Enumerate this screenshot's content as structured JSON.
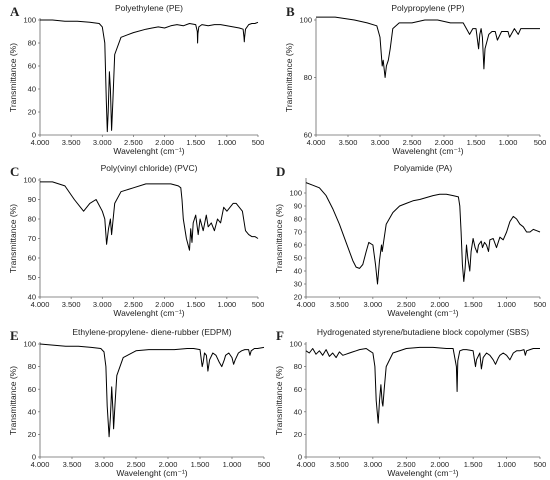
{
  "chart_data": [
    {
      "type": "line",
      "label": "A",
      "title": "Polyethylene (PE)",
      "xlabel": "Wavelenght (cm⁻¹)",
      "ylabel": "Transmittance (%)",
      "xlim": [
        4000,
        500
      ],
      "ylim": [
        0,
        100
      ],
      "xticks": [
        "4.000",
        "3.500",
        "3.000",
        "2.500",
        "2.000",
        "1.500",
        "1.000",
        "500"
      ],
      "yticks": [
        "0",
        "20",
        "40",
        "60",
        "80",
        "100"
      ],
      "x": [
        4000,
        3800,
        3600,
        3400,
        3200,
        3050,
        3000,
        2960,
        2935,
        2920,
        2905,
        2885,
        2870,
        2850,
        2830,
        2800,
        2700,
        2500,
        2300,
        2200,
        2100,
        2000,
        1900,
        1800,
        1700,
        1600,
        1500,
        1475,
        1470,
        1465,
        1450,
        1400,
        1300,
        1200,
        1100,
        1000,
        900,
        800,
        740,
        725,
        720,
        715,
        700,
        650,
        600,
        550,
        500
      ],
      "y": [
        100,
        100,
        99,
        99,
        98,
        97,
        94,
        80,
        30,
        3,
        20,
        55,
        40,
        4,
        30,
        70,
        85,
        89,
        92,
        93,
        94,
        93,
        95,
        96,
        95,
        97,
        96,
        90,
        80,
        88,
        94,
        96,
        95,
        96,
        96,
        95,
        94,
        93,
        92,
        85,
        81,
        85,
        92,
        96,
        97,
        97,
        98
      ]
    },
    {
      "type": "line",
      "label": "B",
      "title": "Polypropylene (PP)",
      "xlabel": "Wavelenght (cm⁻¹)",
      "ylabel": "Transmittance (%)",
      "xlim": [
        4000,
        500
      ],
      "ylim": [
        60,
        100
      ],
      "xticks": [
        "4.000",
        "3.500",
        "3.000",
        "2.500",
        "2.000",
        "1.500",
        "1.000",
        "500"
      ],
      "yticks": [
        "60",
        "80",
        "100"
      ],
      "x": [
        4000,
        3700,
        3400,
        3200,
        3050,
        3000,
        2965,
        2950,
        2920,
        2900,
        2870,
        2840,
        2800,
        2700,
        2500,
        2300,
        2100,
        1900,
        1800,
        1700,
        1650,
        1600,
        1550,
        1500,
        1460,
        1440,
        1420,
        1400,
        1376,
        1360,
        1300,
        1250,
        1200,
        1165,
        1100,
        1000,
        975,
        900,
        840,
        800,
        700,
        600,
        500
      ],
      "y": [
        101,
        101,
        100,
        99,
        98,
        94,
        84,
        86,
        80,
        84,
        86,
        90,
        97,
        99,
        99,
        100,
        100,
        99,
        99,
        99,
        97,
        95,
        97,
        97,
        90,
        95,
        97,
        94,
        83,
        90,
        95,
        96,
        96,
        93,
        96,
        96,
        94,
        97,
        95,
        97,
        97,
        97,
        97
      ]
    },
    {
      "type": "line",
      "label": "C",
      "title": "Poly(vinyl chloride) (PVC)",
      "xlabel": "Wavelenght (cm⁻¹)",
      "ylabel": "Transmittance (%)",
      "xlim": [
        4000,
        500
      ],
      "ylim": [
        40,
        100
      ],
      "xticks": [
        "4.000",
        "3.500",
        "3.000",
        "2.500",
        "2.000",
        "1.500",
        "1.000",
        "500"
      ],
      "yticks": [
        "40",
        "50",
        "60",
        "70",
        "80",
        "90",
        "100"
      ],
      "x": [
        4000,
        3800,
        3600,
        3450,
        3350,
        3300,
        3200,
        3100,
        3000,
        2960,
        2930,
        2900,
        2870,
        2850,
        2800,
        2700,
        2500,
        2300,
        2100,
        1900,
        1780,
        1740,
        1720,
        1700,
        1650,
        1600,
        1580,
        1560,
        1540,
        1500,
        1460,
        1430,
        1380,
        1330,
        1300,
        1250,
        1200,
        1150,
        1100,
        1050,
        1000,
        950,
        900,
        850,
        800,
        750,
        700,
        650,
        600,
        550,
        500
      ],
      "y": [
        99,
        99,
        97,
        90,
        86,
        84,
        88,
        90,
        84,
        80,
        67,
        75,
        80,
        72,
        88,
        94,
        96,
        98,
        98,
        98,
        97,
        96,
        90,
        80,
        70,
        64,
        75,
        68,
        78,
        82,
        72,
        80,
        74,
        82,
        76,
        78,
        74,
        80,
        78,
        86,
        84,
        86,
        88,
        88,
        86,
        84,
        74,
        72,
        71,
        71,
        70
      ]
    },
    {
      "type": "line",
      "label": "D",
      "title": "Polyamide (PA)",
      "xlabel": "Wavelenght (cm⁻¹)",
      "ylabel": "Transmittance (%)",
      "xlim": [
        4000,
        500
      ],
      "ylim": [
        20,
        110
      ],
      "xticks": [
        "4.000",
        "3.500",
        "3.000",
        "2.500",
        "2.000",
        "1.500",
        "1.000",
        "500"
      ],
      "yticks": [
        "20",
        "30",
        "40",
        "50",
        "60",
        "70",
        "80",
        "90",
        "100"
      ],
      "x": [
        4000,
        3900,
        3800,
        3700,
        3600,
        3500,
        3400,
        3300,
        3250,
        3200,
        3150,
        3100,
        3060,
        3000,
        2960,
        2930,
        2900,
        2870,
        2860,
        2800,
        2700,
        2600,
        2500,
        2400,
        2300,
        2100,
        2000,
        1900,
        1800,
        1720,
        1700,
        1680,
        1660,
        1640,
        1620,
        1600,
        1580,
        1550,
        1530,
        1500,
        1470,
        1440,
        1420,
        1380,
        1360,
        1330,
        1300,
        1270,
        1250,
        1200,
        1150,
        1100,
        1050,
        1000,
        950,
        900,
        850,
        800,
        750,
        700,
        650,
        600,
        550,
        500
      ],
      "y": [
        108,
        106,
        104,
        98,
        88,
        76,
        62,
        48,
        43,
        42,
        45,
        55,
        62,
        60,
        45,
        30,
        48,
        60,
        55,
        76,
        85,
        90,
        92,
        94,
        95,
        98,
        99,
        99,
        98,
        97,
        90,
        70,
        45,
        32,
        42,
        60,
        50,
        40,
        55,
        65,
        58,
        54,
        60,
        63,
        58,
        62,
        60,
        55,
        64,
        65,
        58,
        66,
        64,
        70,
        78,
        82,
        80,
        76,
        74,
        70,
        70,
        72,
        71,
        70
      ]
    },
    {
      "type": "line",
      "label": "E",
      "title": "Ethylene-propylene- diene-rubber (EDPM)",
      "xlabel": "Wavelenght (cm⁻¹)",
      "ylabel": "Transmittance (%)",
      "xlim": [
        4000,
        500
      ],
      "ylim": [
        0,
        100
      ],
      "xticks": [
        "4.000",
        "3.500",
        "3.000",
        "2.500",
        "2.000",
        "1.500",
        "1.000",
        "500"
      ],
      "yticks": [
        "0",
        "20",
        "40",
        "60",
        "80",
        "100"
      ],
      "x": [
        4000,
        3800,
        3600,
        3400,
        3200,
        3050,
        3000,
        2970,
        2950,
        2920,
        2900,
        2880,
        2860,
        2850,
        2830,
        2800,
        2700,
        2500,
        2300,
        2100,
        1900,
        1700,
        1600,
        1500,
        1465,
        1450,
        1430,
        1400,
        1376,
        1350,
        1300,
        1250,
        1200,
        1160,
        1120,
        1100,
        1050,
        1000,
        975,
        950,
        900,
        850,
        800,
        740,
        720,
        700,
        650,
        600,
        500
      ],
      "y": [
        100,
        99,
        98,
        98,
        97,
        96,
        93,
        80,
        45,
        18,
        35,
        62,
        40,
        25,
        45,
        72,
        88,
        94,
        95,
        95,
        95,
        96,
        96,
        95,
        80,
        84,
        92,
        90,
        76,
        86,
        92,
        90,
        84,
        80,
        86,
        90,
        92,
        88,
        82,
        86,
        92,
        94,
        95,
        95,
        90,
        94,
        96,
        96,
        97
      ]
    },
    {
      "type": "line",
      "label": "F",
      "title": "Hydrogenated styrene/butadiene block copolymer (SBS)",
      "xlabel": "Wavelenght (cm⁻¹)",
      "ylabel": "Transmittance (%)",
      "xlim": [
        4000,
        500
      ],
      "ylim": [
        0,
        100
      ],
      "xticks": [
        "4.000",
        "3.500",
        "3.000",
        "2.500",
        "2.000",
        "1.500",
        "1.000",
        "500"
      ],
      "yticks": [
        "0",
        "20",
        "40",
        "60",
        "80",
        "100"
      ],
      "x": [
        4000,
        3950,
        3900,
        3850,
        3800,
        3750,
        3700,
        3650,
        3600,
        3550,
        3500,
        3450,
        3400,
        3350,
        3300,
        3250,
        3200,
        3100,
        3050,
        3000,
        2970,
        2950,
        2920,
        2900,
        2880,
        2860,
        2850,
        2830,
        2800,
        2700,
        2500,
        2300,
        2100,
        1900,
        1800,
        1750,
        1740,
        1730,
        1700,
        1650,
        1600,
        1500,
        1465,
        1450,
        1400,
        1376,
        1350,
        1300,
        1250,
        1200,
        1165,
        1120,
        1100,
        1050,
        1000,
        950,
        900,
        850,
        800,
        740,
        720,
        700,
        650,
        600,
        500
      ],
      "y": [
        94,
        92,
        96,
        91,
        94,
        90,
        95,
        89,
        92,
        88,
        93,
        90,
        91,
        92,
        93,
        94,
        95,
        96,
        94,
        92,
        80,
        50,
        30,
        50,
        64,
        48,
        45,
        60,
        80,
        92,
        96,
        97,
        97,
        96,
        96,
        80,
        58,
        85,
        94,
        95,
        95,
        94,
        80,
        86,
        92,
        78,
        88,
        92,
        90,
        86,
        82,
        88,
        90,
        92,
        90,
        86,
        92,
        94,
        94,
        95,
        90,
        94,
        95,
        96,
        96
      ]
    }
  ]
}
